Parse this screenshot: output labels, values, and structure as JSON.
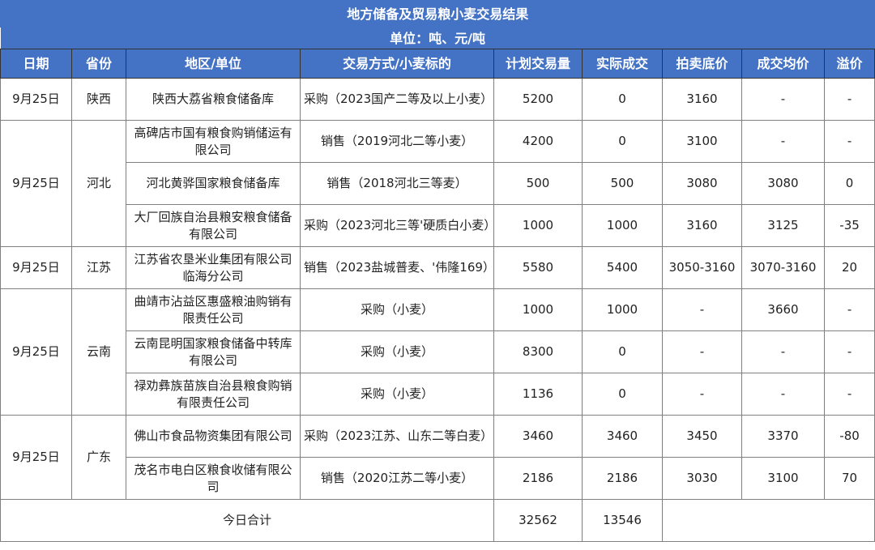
{
  "title": "地方储备及贸易粮小麦交易结果",
  "unit": "单位：吨、元/吨",
  "columns": [
    "日期",
    "省份",
    "地区/单位",
    "交易方式/小麦标的",
    "计划交易量",
    "实际成交",
    "拍卖底价",
    "成交均价",
    "溢价"
  ],
  "groups": [
    {
      "date": "9月25日",
      "province": "陕西",
      "rows": [
        [
          "陕西大荔省粮食储备库",
          "采购（2023国产二等及以上小麦）",
          "5200",
          "0",
          "3160",
          "-",
          "-"
        ]
      ]
    },
    {
      "date": "9月25日",
      "province": "河北",
      "rows": [
        [
          "高碑店市国有粮食购销储运有限公司",
          "销售（2019河北二等小麦）",
          "4200",
          "0",
          "3100",
          "-",
          "-"
        ],
        [
          "河北黄骅国家粮食储备库",
          "销售（2018河北三等麦）",
          "500",
          "500",
          "3080",
          "3080",
          "0"
        ],
        [
          "大厂回族自治县粮安粮食储备有限公司",
          "采购（2023河北三等'硬质白小麦）",
          "1000",
          "1000",
          "3160",
          "3125",
          "-35"
        ]
      ]
    },
    {
      "date": "9月25日",
      "province": "江苏",
      "rows": [
        [
          "江苏省农垦米业集团有限公司临海分公司",
          "销售（2023盐城普麦、'伟隆169）",
          "5580",
          "5400",
          "3050-3160",
          "3070-3160",
          "20"
        ]
      ]
    },
    {
      "date": "9月25日",
      "province": "云南",
      "rows": [
        [
          "曲靖市沾益区惠盛粮油购销有限责任公司",
          "采购（小麦）",
          "1000",
          "1000",
          "-",
          "3660",
          "-"
        ],
        [
          "云南昆明国家粮食储备中转库有限公司",
          "采购（小麦）",
          "8300",
          "0",
          "-",
          "-",
          "-"
        ],
        [
          "禄劝彝族苗族自治县粮食购销有限责任公司",
          "采购（小麦）",
          "1136",
          "0",
          "-",
          "-",
          "-"
        ]
      ]
    },
    {
      "date": "9月25日",
      "province": "广东",
      "rows": [
        [
          "佛山市食品物资集团有限公司",
          "采购（2023江苏、山东二等白麦）",
          "3460",
          "3460",
          "3450",
          "3370",
          "-80"
        ],
        [
          "茂名市电白区粮食收储有限公司",
          "销售（2020江苏二等小麦）",
          "2186",
          "2186",
          "3030",
          "3100",
          "70"
        ]
      ]
    }
  ],
  "total": {
    "label": "今日合计",
    "planned": "32562",
    "actual": "13546"
  },
  "colors": {
    "header_bg": "#4472c4",
    "header_text": "#ffffff",
    "border": "#7f7f7f"
  }
}
